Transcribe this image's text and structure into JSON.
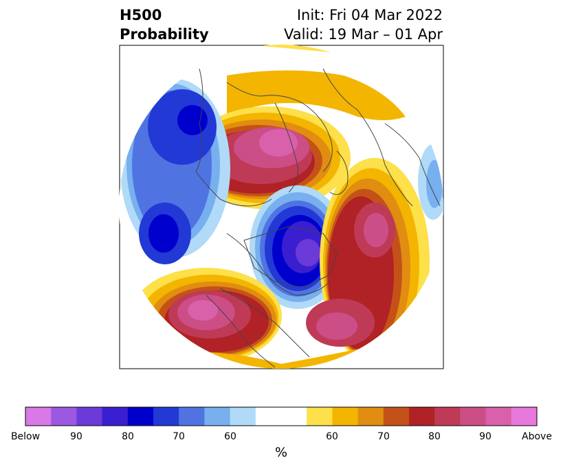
{
  "title": {
    "left_line1": "H500",
    "left_line2": "Probability",
    "right_line1": "Init: Fri 04 Mar 2022",
    "right_line2": "Valid: 19 Mar – 01 Apr"
  },
  "colorbar": {
    "units": "%",
    "labels": [
      "Below",
      "90",
      "80",
      "70",
      "60",
      "60",
      "70",
      "80",
      "90",
      "Above"
    ],
    "colors": [
      "#d879e6",
      "#9b58e0",
      "#6c3ad8",
      "#3a1fd0",
      "#0000cc",
      "#2239d6",
      "#4f74e2",
      "#78afef",
      "#b0daf7",
      "#ffffff",
      "#ffffff",
      "#fde04a",
      "#f3b500",
      "#e08d12",
      "#c45218",
      "#b02225",
      "#bf3a56",
      "#cc4e87",
      "#d960aa",
      "#e879dc"
    ]
  },
  "colors": {
    "below_strong": "#0000cc",
    "above_strong": "#b02225",
    "map_lines": "#444444"
  }
}
